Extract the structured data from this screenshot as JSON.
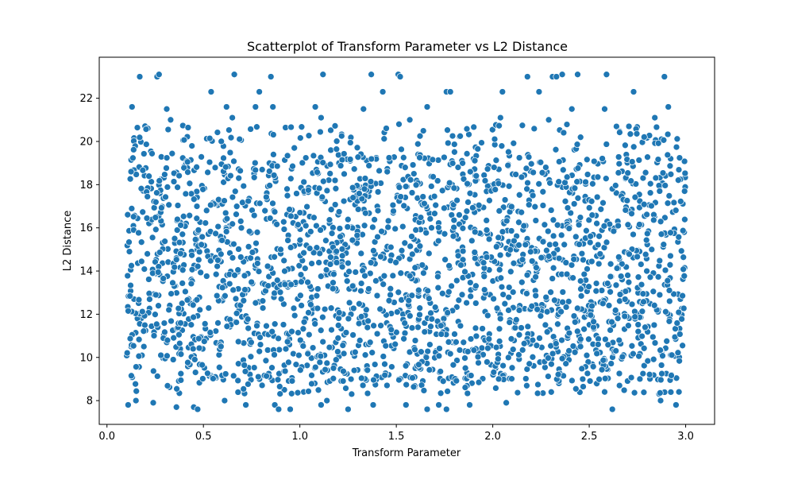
{
  "chart_data": {
    "type": "scatter",
    "title": "Scatterplot of Transform Parameter vs L2 Distance",
    "xlabel": "Transform Parameter",
    "ylabel": "L2 Distance",
    "xlim": [
      -0.04,
      3.15
    ],
    "ylim": [
      6.9,
      23.9
    ],
    "xticks": [
      0.0,
      0.5,
      1.0,
      1.5,
      2.0,
      2.5,
      3.0
    ],
    "xtick_labels": [
      "0.0",
      "0.5",
      "1.0",
      "1.5",
      "2.0",
      "2.5",
      "3.0"
    ],
    "yticks": [
      8,
      10,
      12,
      14,
      16,
      18,
      20,
      22
    ],
    "ytick_labels": [
      "8",
      "10",
      "12",
      "14",
      "16",
      "18",
      "20",
      "22"
    ],
    "grid": false,
    "marker_color": "#1f77b4",
    "marker_edge_color": "#ffffff",
    "x_range": [
      0.1,
      3.0
    ],
    "y_range": [
      7.5,
      23.1
    ],
    "series": [
      {
        "points": [
          [
            0.11,
            7.8
          ],
          [
            0.15,
            8.0
          ],
          [
            0.24,
            7.9
          ],
          [
            0.36,
            7.7
          ],
          [
            0.45,
            7.7
          ],
          [
            0.47,
            7.6
          ],
          [
            0.61,
            8.0
          ],
          [
            0.72,
            7.8
          ],
          [
            0.87,
            7.8
          ],
          [
            0.89,
            7.6
          ],
          [
            0.95,
            7.6
          ],
          [
            1.02,
            8.4
          ],
          [
            1.11,
            7.8
          ],
          [
            1.14,
            8.0
          ],
          [
            1.25,
            7.6
          ],
          [
            1.38,
            7.8
          ],
          [
            1.55,
            7.8
          ],
          [
            1.66,
            7.6
          ],
          [
            1.72,
            7.8
          ],
          [
            1.76,
            7.6
          ],
          [
            1.88,
            7.8
          ],
          [
            2.07,
            7.9
          ],
          [
            2.58,
            8.4
          ],
          [
            2.62,
            7.6
          ],
          [
            2.87,
            8.0
          ],
          [
            2.95,
            7.8
          ],
          [
            0.17,
            23.0
          ],
          [
            0.26,
            23.0
          ],
          [
            0.27,
            23.1
          ],
          [
            0.66,
            23.1
          ],
          [
            0.85,
            23.0
          ],
          [
            1.12,
            23.1
          ],
          [
            1.37,
            23.1
          ],
          [
            1.51,
            23.1
          ],
          [
            1.52,
            23.0
          ],
          [
            1.76,
            22.3
          ],
          [
            1.78,
            22.3
          ],
          [
            2.18,
            23.0
          ],
          [
            2.31,
            23.0
          ],
          [
            2.33,
            23.0
          ],
          [
            2.36,
            23.1
          ],
          [
            2.44,
            23.1
          ],
          [
            2.59,
            23.1
          ],
          [
            2.89,
            23.0
          ],
          [
            0.54,
            22.3
          ],
          [
            0.79,
            22.3
          ],
          [
            1.43,
            22.3
          ],
          [
            2.05,
            22.3
          ],
          [
            2.24,
            22.3
          ],
          [
            2.73,
            22.3
          ],
          [
            0.13,
            21.6
          ],
          [
            0.31,
            21.5
          ],
          [
            0.62,
            21.6
          ],
          [
            0.77,
            21.6
          ],
          [
            0.86,
            21.6
          ],
          [
            1.08,
            21.6
          ],
          [
            1.33,
            21.5
          ],
          [
            1.66,
            21.6
          ],
          [
            2.41,
            21.5
          ],
          [
            2.58,
            21.5
          ],
          [
            2.91,
            21.6
          ],
          [
            0.65,
            21.1
          ],
          [
            0.33,
            21.0
          ],
          [
            1.11,
            21.1
          ],
          [
            1.57,
            21.0
          ],
          [
            2.04,
            21.1
          ],
          [
            2.84,
            21.1
          ],
          [
            2.29,
            21.0
          ]
        ]
      }
    ]
  }
}
